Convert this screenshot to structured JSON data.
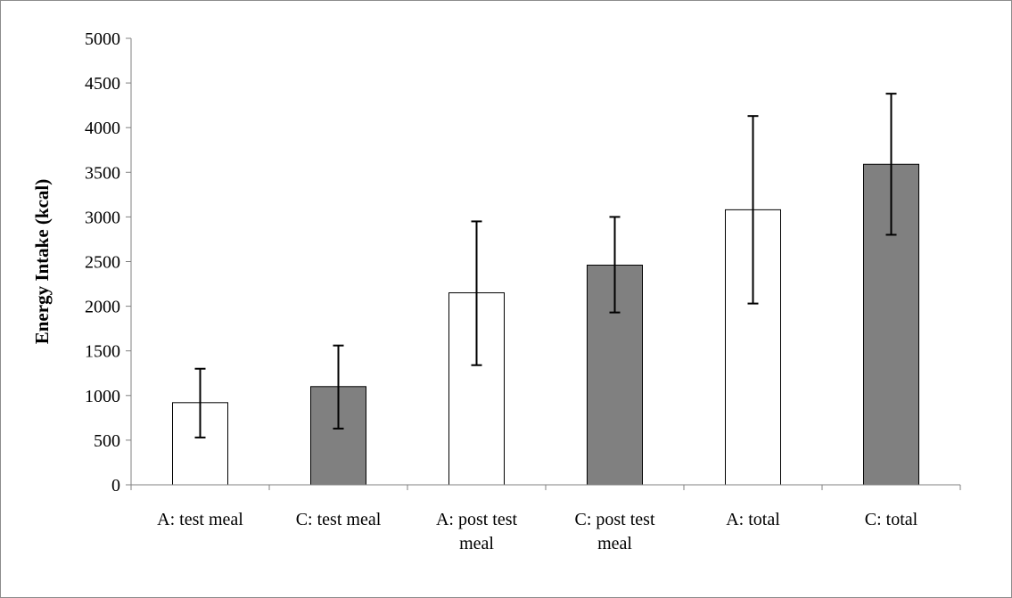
{
  "chart_data": {
    "type": "bar",
    "title": "",
    "xlabel": "",
    "ylabel": "Energy Intake (kcal)",
    "ylim": [
      0,
      5000
    ],
    "yticks": [
      0,
      500,
      1000,
      1500,
      2000,
      2500,
      3000,
      3500,
      4000,
      4500,
      5000
    ],
    "grid": false,
    "legend": "none",
    "categories": [
      [
        "A: test meal"
      ],
      [
        "C: test meal"
      ],
      [
        "A: post test",
        "meal"
      ],
      [
        "C: post test",
        "meal"
      ],
      [
        "A: total"
      ],
      [
        "C: total"
      ]
    ],
    "values": [
      920,
      1100,
      2150,
      2460,
      3080,
      3590
    ],
    "error_low": [
      530,
      630,
      1340,
      1930,
      2030,
      2800
    ],
    "error_high": [
      1300,
      1560,
      2950,
      3000,
      4130,
      4380
    ],
    "bar_colors": [
      "#ffffff",
      "#808080",
      "#ffffff",
      "#808080",
      "#ffffff",
      "#808080"
    ]
  }
}
